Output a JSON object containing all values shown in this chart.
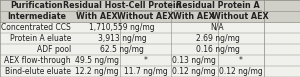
{
  "col_headers_top": [
    "",
    "Residual Host-Cell Protein",
    "",
    "Residual Protein A",
    ""
  ],
  "col_headers_sub": [
    "Purification\nIntermediate",
    "With AEX",
    "Without AEX",
    "With AEX",
    "Without AEX"
  ],
  "rows": [
    [
      "Concentrated CCS",
      "1,710,559 ng/mg",
      "",
      "N/A",
      ""
    ],
    [
      "Protein A eluate",
      "3,913 ng/mg",
      "",
      "2.69 ng/mg",
      ""
    ],
    [
      "ADF pool",
      "62.5 ng/mg",
      "",
      "0.16 ng/mg",
      ""
    ],
    [
      "AEX flow-through",
      "49.5 ng/mg",
      "*",
      "0.13 ng/mg",
      "*"
    ],
    [
      "Bind-elute eluate",
      "12.2 ng/mg",
      "11.7 ng/mg",
      "0.12 ng/mg",
      "0.12 ng/mg"
    ]
  ],
  "bg_color": "#f5f5f0",
  "header_bg": "#d0cfc8",
  "line_color": "#888880",
  "text_color": "#222222",
  "font_size": 5.5,
  "header_font_size": 5.8
}
